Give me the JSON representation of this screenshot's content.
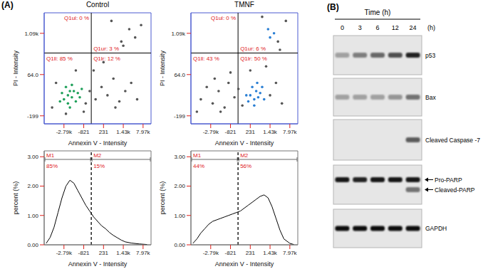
{
  "panel_A_label": "(A)",
  "chart_data": [
    {
      "type": "scatter",
      "title": "Control",
      "x_label": "Annexin V - Intensity",
      "y_label": "PI - Intensity",
      "xlim": [
        -4760,
        10600
      ],
      "xticks": [
        {
          "value": -2790,
          "label": "-2.79k"
        },
        -821,
        231,
        {
          "value": 1430,
          "label": "1.43k"
        },
        {
          "value": 7970,
          "label": "7.97k"
        }
      ],
      "ylim": [
        -250,
        1600
      ],
      "yticks": [
        -199,
        {
          "value": 64,
          "label": "64.0"
        },
        {
          "value": 1090,
          "label": "1.09k"
        }
      ],
      "gates": {
        "x": -420,
        "y": 600
      },
      "quadrants": [
        {
          "name": "Q1ul",
          "value": 0,
          "label": "Q1ul: 0 %"
        },
        {
          "name": "Q1ur",
          "value": 3,
          "label": "Q1ur: 3 %"
        },
        {
          "name": "Q1ll",
          "value": 85,
          "label": "Q1ll: 85 %"
        },
        {
          "name": "Q1lr",
          "value": 12,
          "label": "Q1lr: 12 %"
        }
      ],
      "series": [
        {
          "color": "#1fa05a",
          "x": [
            -2790,
            -2396,
            -2002,
            -2199,
            -2593,
            -1806,
            -1609,
            -1412,
            -2396,
            -2987,
            -2002,
            -1215,
            -2199,
            -3184,
            -1018
          ],
          "y": [
            -94,
            -68,
            -81,
            -41,
            -15,
            -41,
            -107,
            -54,
            -120,
            -54,
            -2,
            -81,
            -146,
            -107,
            -28
          ]
        },
        {
          "color": "#555555",
          "x": [
            -3971,
            -3578,
            -716,
            -505,
            -190,
            126,
            471,
            831,
            1190,
            2084,
            4046,
            -295,
            -1609,
            231,
            -2593,
            -821,
            951,
            6008,
            1310,
            3392,
            5354,
            711,
            7316,
            1430
          ],
          "y": [
            -146,
            11,
            -120,
            -41,
            -94,
            -15,
            -68,
            38,
            -107,
            -41,
            11,
            167,
            167,
            372,
            -186,
            -173,
            -146,
            -94,
            885,
            1193,
            987,
            1398,
            1295,
            782
          ]
        }
      ]
    },
    {
      "type": "scatter",
      "title": "TMNF",
      "x_label": "Annexin V - Intensity",
      "y_label": "PI - Intensity",
      "xlim": [
        -4760,
        10600
      ],
      "xticks": [
        {
          "value": -2790,
          "label": "-2.79k"
        },
        -821,
        231,
        {
          "value": 1430,
          "label": "1.43k"
        },
        {
          "value": 7970,
          "label": "7.97k"
        }
      ],
      "ylim": [
        -250,
        1600
      ],
      "yticks": [
        -199,
        {
          "value": 64,
          "label": "64.0"
        },
        {
          "value": 1090,
          "label": "1.09k"
        }
      ],
      "gates": {
        "x": -420,
        "y": 600
      },
      "quadrants": [
        {
          "name": "Q1ul",
          "value": 0,
          "label": "Q1ul: 0 %"
        },
        {
          "name": "Q1ur",
          "value": 6,
          "label": "Q1ur: 6 %"
        },
        {
          "name": "Q1ll",
          "value": 43,
          "label": "Q1ll: 43 %"
        },
        {
          "name": "Q1lr",
          "value": 50,
          "label": "Q1lr: 50 %"
        }
      ],
      "series": [
        {
          "color": "#2a7fd4",
          "x": [
            231,
            471,
            591,
            351,
            711,
            831,
            21,
            471,
            951,
            126,
            651,
            1070,
            1430,
            2738,
            1310
          ],
          "y": [
            -68,
            -94,
            -41,
            -15,
            -81,
            -54,
            -68,
            -133,
            -15,
            -107,
            11,
            -94,
            987,
            1090,
            1193
          ]
        },
        {
          "color": "#555555",
          "x": [
            -3775,
            -3184,
            -2593,
            -2002,
            -1412,
            -1018,
            -611,
            -400,
            -190,
            -2396,
            -821,
            1430,
            3392,
            5354,
            1190,
            4700,
            6662,
            951,
            4046,
            -4168,
            231,
            -1806
          ],
          "y": [
            -94,
            -15,
            -120,
            -41,
            -146,
            11,
            -81,
            -28,
            -133,
            38,
            115,
            -68,
            11,
            -120,
            269,
            680,
            1398,
            1500,
            885,
            -173,
            167,
            -173
          ]
        }
      ]
    },
    {
      "type": "line",
      "x_label": "Annexin V - Intensity",
      "y_label": "percent (%)",
      "xlim": [
        -4760,
        10600
      ],
      "xticks": [
        {
          "value": -2790,
          "label": "-2.79k"
        },
        -821,
        231,
        {
          "value": 1430,
          "label": "1.43k"
        },
        {
          "value": 7970,
          "label": "7.97k"
        }
      ],
      "ylim": [
        0,
        3.2
      ],
      "yticks": [
        {
          "value": 0,
          "label": "0.00"
        },
        {
          "value": 1,
          "label": "1.00"
        },
        {
          "value": 2,
          "label": "2.00"
        },
        {
          "value": 3,
          "label": "3.00"
        }
      ],
      "gate": -420,
      "regions": [
        {
          "name": "M1",
          "value": 85,
          "label": "85%"
        },
        {
          "name": "M2",
          "value": 15,
          "label": "15%"
        }
      ],
      "color": "#000000",
      "x": [
        -4562,
        -4168,
        -3775,
        -3381,
        -2987,
        -2593,
        -2199,
        -1806,
        -1412,
        -1018,
        -716,
        -505,
        -295,
        -85,
        126,
        351,
        591,
        831,
        1070,
        1310,
        2084,
        4046,
        6662,
        9278
      ],
      "values": [
        0.05,
        0.25,
        0.6,
        1.1,
        1.6,
        2.0,
        2.2,
        2.1,
        1.85,
        1.6,
        1.35,
        1.15,
        0.95,
        0.8,
        0.65,
        0.55,
        0.42,
        0.32,
        0.24,
        0.16,
        0.1,
        0.06,
        0.03,
        0.01
      ]
    },
    {
      "type": "line",
      "x_label": "Annexin V - Intensity",
      "y_label": "percent (%)",
      "xlim": [
        -4760,
        10600
      ],
      "xticks": [
        {
          "value": -2790,
          "label": "-2.79k"
        },
        -821,
        231,
        {
          "value": 1430,
          "label": "1.43k"
        },
        {
          "value": 7970,
          "label": "7.97k"
        }
      ],
      "ylim": [
        0,
        3.2
      ],
      "yticks": [
        {
          "value": 0,
          "label": "0.00"
        },
        {
          "value": 1,
          "label": "1.00"
        },
        {
          "value": 2,
          "label": "2.00"
        },
        {
          "value": 3,
          "label": "3.00"
        }
      ],
      "gate": -420,
      "regions": [
        {
          "name": "M1",
          "value": 44,
          "label": "44%"
        },
        {
          "name": "M2",
          "value": 56,
          "label": "56%"
        }
      ],
      "color": "#000000",
      "x": [
        -4562,
        -4168,
        -3775,
        -3381,
        -2987,
        -2593,
        -2199,
        -1806,
        -1412,
        -1018,
        -716,
        -505,
        -295,
        -85,
        126,
        351,
        591,
        831,
        1070,
        1310,
        2084,
        3392,
        4700,
        6008,
        7970,
        9278
      ],
      "values": [
        0.05,
        0.2,
        0.4,
        0.55,
        0.7,
        0.8,
        0.85,
        0.9,
        0.95,
        1.0,
        1.05,
        1.1,
        1.15,
        1.25,
        1.35,
        1.45,
        1.55,
        1.65,
        1.7,
        1.6,
        1.3,
        0.9,
        0.5,
        0.2,
        0.05,
        0.01
      ]
    }
  ],
  "blot": {
    "panel_label": "(B)",
    "time_title": "Time (h)",
    "lanes": [
      "0",
      "3",
      "6",
      "12",
      "24"
    ],
    "lane_unit": "(h)",
    "rows": [
      {
        "label": "p53",
        "bands": [
          {
            "intensity": [
              0.3,
              0.45,
              0.55,
              0.65,
              0.85
            ]
          }
        ]
      },
      {
        "label": "Bax",
        "bands": [
          {
            "intensity": [
              0.3,
              0.3,
              0.3,
              0.35,
              0.5
            ]
          }
        ]
      },
      {
        "label": "Cleaved Caspase -7",
        "bands": [
          {
            "intensity": [
              0,
              0,
              0,
              0,
              0.6
            ]
          }
        ]
      },
      {
        "bands": [
          {
            "label": "Pro-PARP",
            "intensity": [
              0.9,
              0.85,
              0.9,
              0.9,
              0.9
            ]
          },
          {
            "label": "Cleaved-PARP",
            "intensity": [
              0,
              0,
              0,
              0,
              0.5
            ]
          }
        ]
      },
      {
        "label": "GAPDH",
        "bands": [
          {
            "intensity": [
              0.95,
              0.95,
              0.95,
              0.95,
              0.95
            ]
          }
        ]
      }
    ]
  }
}
